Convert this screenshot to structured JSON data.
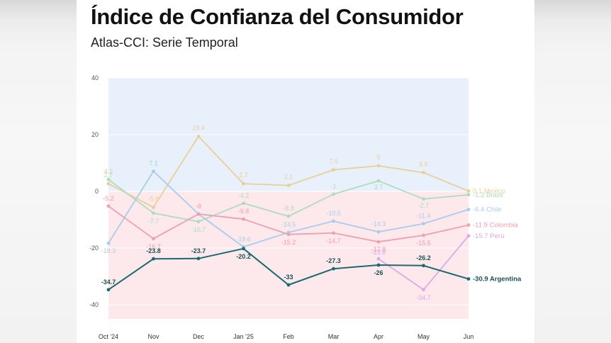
{
  "title": "Índice de Confianza del Consumidor",
  "subtitle": "Atlas-CCI: Serie Temporal",
  "chart_data": {
    "type": "line",
    "title": "Índice de Confianza del Consumidor",
    "subtitle": "Atlas-CCI: Serie Temporal",
    "xlabel": "",
    "ylabel": "",
    "categories": [
      "Oct '24",
      "Nov",
      "Dec",
      "Jan '25",
      "Feb",
      "Mar",
      "Apr",
      "May",
      "Jun"
    ],
    "ylim": [
      -45,
      40
    ],
    "yticks": [
      40,
      20,
      0,
      -20,
      -40
    ],
    "grid": true,
    "background_bands": [
      {
        "from": 0,
        "to": 40,
        "color": "#e8f1fb"
      },
      {
        "from": -45,
        "to": 0,
        "color": "#fde8ec"
      }
    ],
    "series": [
      {
        "name": "Mexico",
        "color": "#e8cf9a",
        "values": [
          2.7,
          -5.6,
          19.4,
          2.7,
          2.1,
          7.6,
          9,
          6.6,
          0.1
        ],
        "labels": [
          "2.7",
          "-5.6",
          "19.4",
          "2.7",
          "2.1",
          "7.6",
          "9",
          "6.6",
          "0.1"
        ],
        "end_label": "0.1 Mexico"
      },
      {
        "name": "Brazil",
        "color": "#aedcbc",
        "values": [
          4.2,
          -7.7,
          -10.7,
          -4.2,
          -8.8,
          -1,
          3.7,
          -2.7,
          -1.2
        ],
        "labels": [
          "4.2",
          "-7.7",
          "-10.7",
          "-4.2",
          "-8.8",
          "-1",
          "3.7",
          "-2.7",
          "-1.2"
        ],
        "end_label": "-1.2 Brazil"
      },
      {
        "name": "Chile",
        "color": "#aacce9",
        "values": [
          -18.3,
          7.1,
          -8,
          -19.6,
          -14.5,
          -10.5,
          -14.3,
          -11.4,
          -6.4
        ],
        "labels": [
          "-18.3",
          "7.1",
          "",
          "-19.6",
          "-14.5",
          "-10.5",
          "-14.3",
          "-11.4",
          "-6.4"
        ],
        "end_label": "-6.4 Chile"
      },
      {
        "name": "Colombia",
        "color": "#ee9fb1",
        "values": [
          -5.2,
          -16.7,
          -8,
          -9.8,
          -15.2,
          -14.7,
          -17.8,
          -15.5,
          -11.9
        ],
        "labels": [
          "-5.2",
          "-16.7",
          "-8",
          "-9.8",
          "-15.2",
          "-14.7",
          "-17.8",
          "-15.5",
          "-11.9"
        ],
        "end_label": "-11.9 Colombia"
      },
      {
        "name": "Perú",
        "color": "#dfa9e6",
        "values": [
          null,
          null,
          null,
          null,
          null,
          null,
          -23.8,
          -34.7,
          -15.7
        ],
        "labels": [
          "",
          "",
          "",
          "",
          "",
          "",
          "-23.8",
          "-34.7",
          "-15.7"
        ],
        "end_label": "-15.7 Perú"
      },
      {
        "name": "Argentina",
        "color": "#1b6a6e",
        "values": [
          -34.7,
          -23.8,
          -23.7,
          -20.2,
          -33,
          -27.3,
          -26,
          -26.2,
          -30.9
        ],
        "labels": [
          "-34.7",
          "-23.8",
          "-23.7",
          "-20.2",
          "-33",
          "-27.3",
          "-26",
          "-26.2",
          "-30.9"
        ],
        "end_label": "-30.9 Argentina"
      }
    ]
  }
}
